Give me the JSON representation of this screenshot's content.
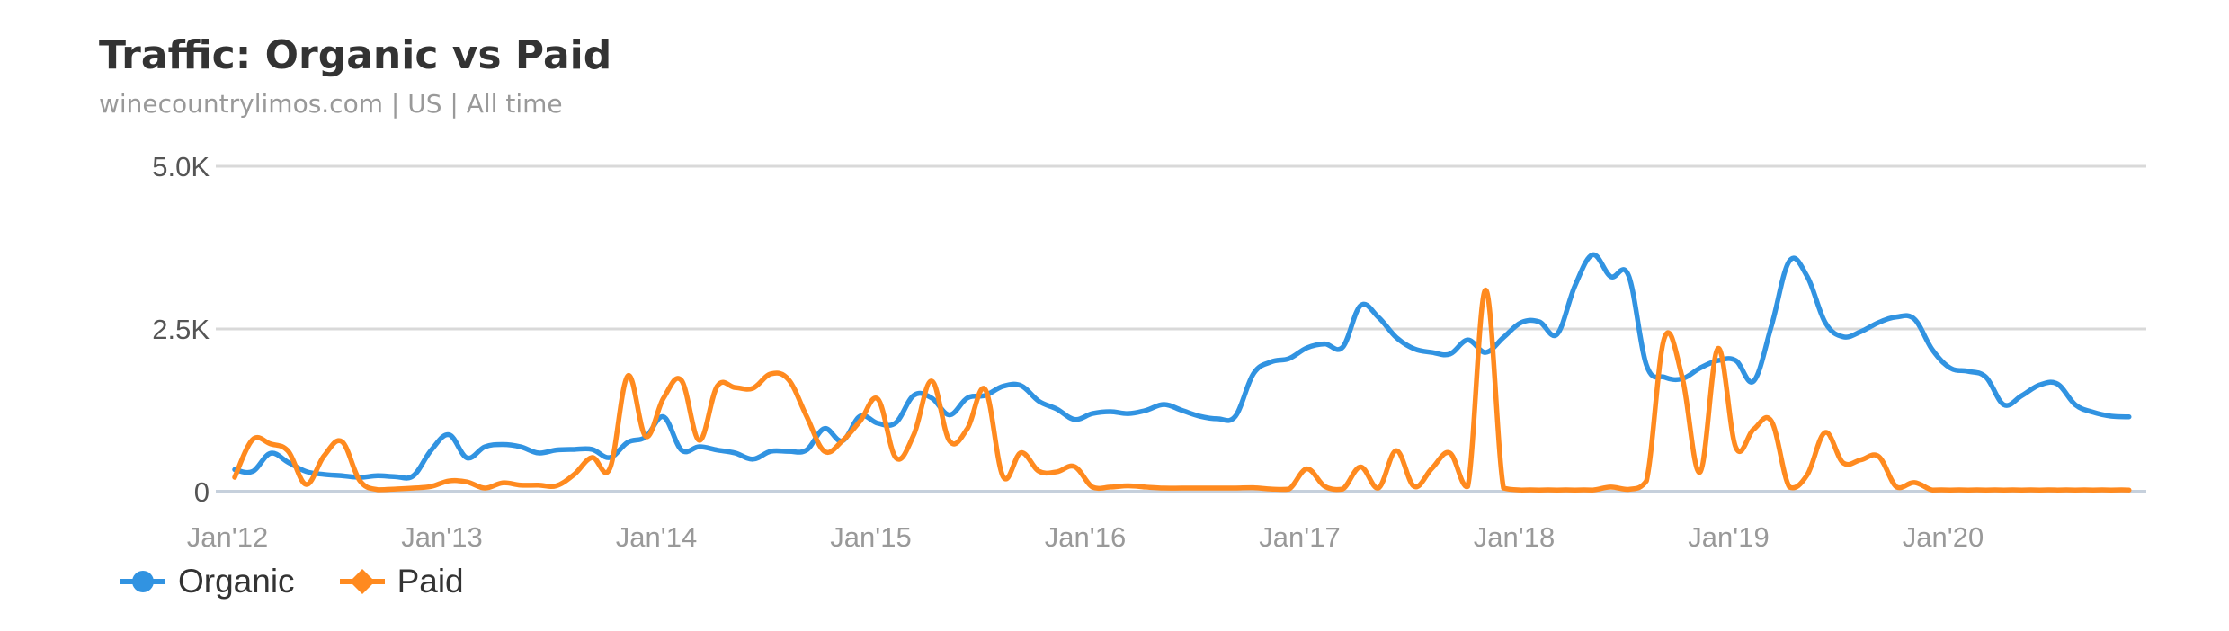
{
  "chart_data": {
    "type": "line",
    "title": "Traffic: Organic vs Paid",
    "subtitle": "winecountrylimos.com | US | All time",
    "xlabel": "",
    "ylabel": "",
    "ylim": [
      0,
      5000
    ],
    "y_ticks": [
      {
        "value": 0,
        "label": "0"
      },
      {
        "value": 2500,
        "label": "2.5K"
      },
      {
        "value": 5000,
        "label": "5.0K"
      }
    ],
    "x_ticks": [
      "Jan'12",
      "Jan'13",
      "Jan'14",
      "Jan'15",
      "Jan'16",
      "Jan'17",
      "Jan'18",
      "Jan'19",
      "Jan'20"
    ],
    "x_range": [
      "2012-01",
      "2020-11"
    ],
    "x_interval": "month",
    "grid": true,
    "legend_position": "bottom-left",
    "series": [
      {
        "name": "Organic",
        "color": "#3193e1",
        "marker": "circle",
        "values": [
          340,
          310,
          590,
          450,
          310,
          265,
          245,
          220,
          245,
          230,
          245,
          640,
          875,
          520,
          690,
          725,
          690,
          595,
          640,
          650,
          650,
          525,
          760,
          840,
          1150,
          640,
          690,
          640,
          595,
          500,
          620,
          620,
          640,
          970,
          780,
          1160,
          1050,
          1060,
          1480,
          1440,
          1180,
          1440,
          1480,
          1620,
          1630,
          1390,
          1270,
          1110,
          1200,
          1230,
          1200,
          1250,
          1340,
          1250,
          1160,
          1120,
          1160,
          1810,
          1995,
          2045,
          2210,
          2270,
          2220,
          2860,
          2680,
          2370,
          2195,
          2140,
          2115,
          2330,
          2140,
          2370,
          2600,
          2610,
          2420,
          3165,
          3640,
          3305,
          3320,
          1945,
          1760,
          1735,
          1900,
          2015,
          2015,
          1700,
          2555,
          3545,
          3305,
          2600,
          2380,
          2460,
          2600,
          2685,
          2650,
          2180,
          1900,
          1850,
          1760,
          1335,
          1475,
          1640,
          1655,
          1335,
          1220,
          1160,
          1150
        ]
      },
      {
        "name": "Paid",
        "color": "#ff8a1f",
        "marker": "diamond",
        "values": [
          220,
          800,
          735,
          620,
          110,
          550,
          770,
          170,
          30,
          40,
          55,
          80,
          165,
          150,
          55,
          135,
          100,
          100,
          90,
          265,
          525,
          360,
          1780,
          850,
          1440,
          1710,
          790,
          1620,
          1600,
          1590,
          1810,
          1720,
          1160,
          620,
          780,
          1085,
          1420,
          520,
          875,
          1700,
          780,
          970,
          1570,
          230,
          600,
          315,
          305,
          385,
          70,
          70,
          90,
          70,
          55,
          55,
          55,
          55,
          55,
          60,
          40,
          40,
          350,
          80,
          40,
          380,
          55,
          630,
          80,
          360,
          595,
          80,
          3100,
          55,
          25,
          25,
          25,
          25,
          25,
          70,
          35,
          165,
          2360,
          1760,
          300,
          2200,
          680,
          960,
          1080,
          70,
          260,
          910,
          445,
          490,
          540,
          70,
          140,
          25,
          25,
          25,
          25,
          25,
          25,
          25,
          25,
          25,
          25,
          25,
          25
        ]
      }
    ]
  },
  "colors": {
    "grid": "#d9d9d9",
    "axis": "#c6d0dc",
    "title": "#333333",
    "subtitle": "#999999"
  }
}
